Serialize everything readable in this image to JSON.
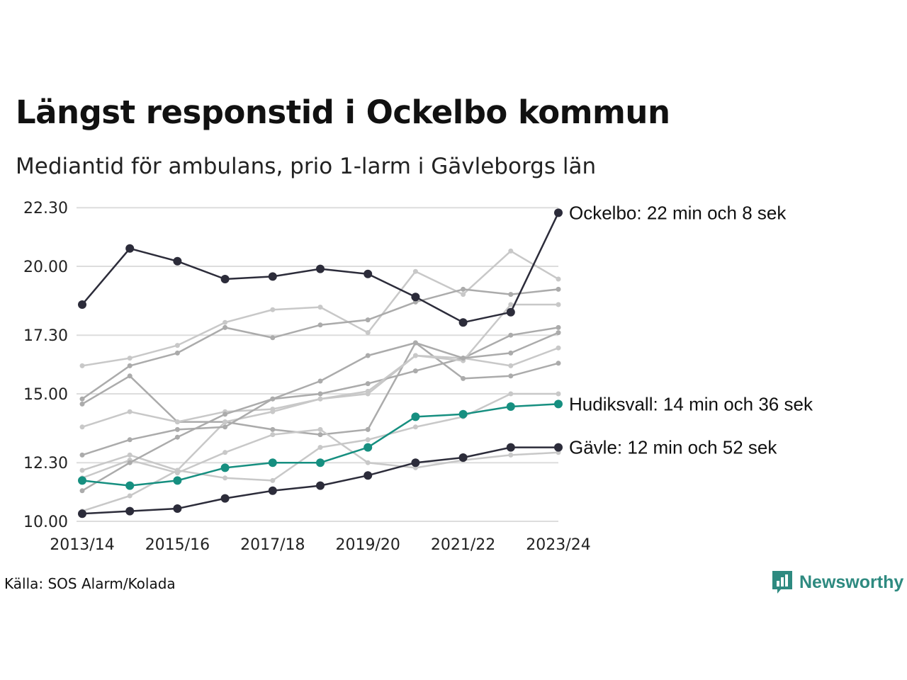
{
  "title": "Längst responstid i Ockelbo kommun",
  "subtitle": "Mediantid för ambulans, prio 1-larm i Gävleborgs län",
  "source": "Källa: SOS Alarm/Kolada",
  "brand": {
    "name": "Newsworthy",
    "color": "#2e8a80",
    "icon": "newsworthy-logo-icon"
  },
  "colors": {
    "dark": "#2c2c3a",
    "accent": "#168f80",
    "muted_light": "#c8c8c8",
    "muted_dark": "#ababab",
    "grid": "#dddddd"
  },
  "chart_data": {
    "type": "line",
    "x": [
      "2013/14",
      "2014/15",
      "2015/16",
      "2016/17",
      "2017/18",
      "2018/19",
      "2019/20",
      "2020/21",
      "2021/22",
      "2022/23",
      "2023/24"
    ],
    "x_tick_labels": [
      "2013/14",
      "2015/16",
      "2017/18",
      "2019/20",
      "2021/22",
      "2023/24"
    ],
    "y_tick_labels": [
      "10.00",
      "12.30",
      "15.00",
      "17.30",
      "20.00",
      "22.30"
    ],
    "ylim": [
      10.0,
      22.5
    ],
    "grid": "horizontal",
    "series": [
      {
        "values": [
          16.1,
          16.4,
          16.9,
          17.8,
          18.3,
          18.4,
          17.4,
          19.8,
          18.9,
          20.6,
          19.5
        ],
        "style": "muted_light"
      },
      {
        "values": [
          14.6,
          15.7,
          13.9,
          13.9,
          13.6,
          13.4,
          13.6,
          17.0,
          15.6,
          15.7,
          16.2
        ],
        "style": "muted_dark"
      },
      {
        "values": [
          13.7,
          14.3,
          13.9,
          14.3,
          14.4,
          14.8,
          15.0,
          16.5,
          16.4,
          16.1,
          16.8
        ],
        "style": "muted_light"
      },
      {
        "values": [
          12.0,
          12.6,
          12.0,
          11.7,
          11.6,
          12.9,
          13.2,
          13.7,
          14.1,
          15.0,
          15.0
        ],
        "style": "muted_light"
      },
      {
        "values": [
          14.8,
          16.1,
          16.6,
          17.6,
          17.2,
          17.7,
          17.9,
          18.6,
          19.1,
          18.9,
          19.1
        ],
        "style": "muted_dark"
      },
      {
        "values": [
          11.7,
          12.4,
          11.9,
          12.7,
          13.4,
          13.6,
          12.3,
          12.1,
          12.4,
          12.6,
          12.7
        ],
        "style": "muted_light"
      },
      {
        "values": [
          11.2,
          12.3,
          13.3,
          14.2,
          14.8,
          15.0,
          15.4,
          15.9,
          16.4,
          17.3,
          17.6
        ],
        "style": "muted_dark"
      },
      {
        "values": [
          10.4,
          11.0,
          12.0,
          13.9,
          14.3,
          14.8,
          15.1,
          16.5,
          16.3,
          18.5,
          18.5
        ],
        "style": "muted_light"
      },
      {
        "values": [
          12.6,
          13.2,
          13.6,
          13.7,
          14.8,
          15.5,
          16.5,
          17.0,
          16.4,
          16.6,
          17.4
        ],
        "style": "muted_dark"
      },
      {
        "name": "Hudiksvall",
        "label": "Hudiksvall: 14 min och 36 sek",
        "values": [
          11.6,
          11.4,
          11.6,
          12.1,
          12.3,
          12.3,
          12.9,
          14.1,
          14.2,
          14.5,
          14.6
        ],
        "style": "accent"
      },
      {
        "name": "Gävle",
        "label": "Gävle: 12 min och 52 sek",
        "values": [
          10.3,
          10.4,
          10.5,
          10.9,
          11.2,
          11.4,
          11.8,
          12.3,
          12.5,
          12.9,
          12.9
        ],
        "style": "dark"
      },
      {
        "name": "Ockelbo",
        "label": "Ockelbo: 22 min och 8 sek",
        "values": [
          18.5,
          20.7,
          20.2,
          19.5,
          19.6,
          19.9,
          19.7,
          18.8,
          17.8,
          18.2,
          22.1
        ],
        "style": "dark"
      }
    ]
  }
}
